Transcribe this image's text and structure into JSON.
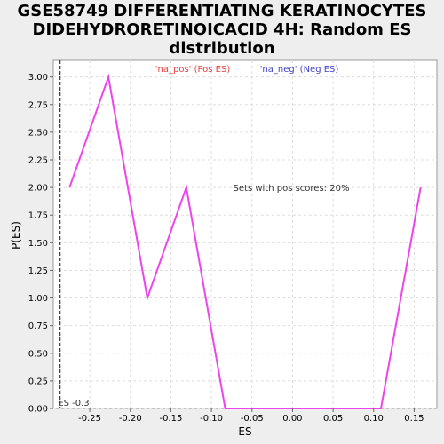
{
  "title_lines": [
    "GSE58749 DIFFERENTIATING KERATINOCYTES",
    "DIDEHYDRORETINOICACID 4H: Random ES",
    "distribution"
  ],
  "chart_data": {
    "type": "line",
    "title": "GSE58749 DIFFERENTIATING KERATINOCYTES DIDEHYDRORETINOICACID 4H: Random ES distribution",
    "xlabel": "ES",
    "ylabel": "P(ES)",
    "xlim": [
      -0.295,
      0.178
    ],
    "ylim": [
      0,
      3.15
    ],
    "xticks": [
      "-0.25",
      "-0.20",
      "-0.15",
      "-0.10",
      "-0.05",
      "0.00",
      "0.05",
      "0.10",
      "0.15"
    ],
    "xtick_values": [
      -0.25,
      -0.2,
      -0.15,
      -0.1,
      -0.05,
      0.0,
      0.05,
      0.1,
      0.15
    ],
    "yticks": [
      "0.00",
      "0.25",
      "0.50",
      "0.75",
      "1.00",
      "1.25",
      "1.50",
      "1.75",
      "2.00",
      "2.25",
      "2.50",
      "2.75",
      "3.00"
    ],
    "ytick_values": [
      0,
      0.25,
      0.5,
      0.75,
      1.0,
      1.25,
      1.5,
      1.75,
      2.0,
      2.25,
      2.5,
      2.75,
      3.0
    ],
    "grid": true,
    "series": [
      {
        "x": [
          -0.275,
          -0.227,
          -0.179,
          -0.131,
          -0.083,
          0.109,
          0.158
        ],
        "y": [
          2.0,
          3.0,
          1.0,
          2.0,
          0.0,
          0.0,
          2.0
        ],
        "color": "#ee44ee"
      }
    ],
    "legend": [
      {
        "label": "'na_pos' (Pos ES)",
        "color": "#e84040"
      },
      {
        "label": "'na_neg' (Neg ES)",
        "color": "#4444cc"
      }
    ],
    "annotation": "Sets with pos scores: 20%",
    "es_marker": {
      "x": -0.287,
      "label": "ES -0.3"
    }
  }
}
